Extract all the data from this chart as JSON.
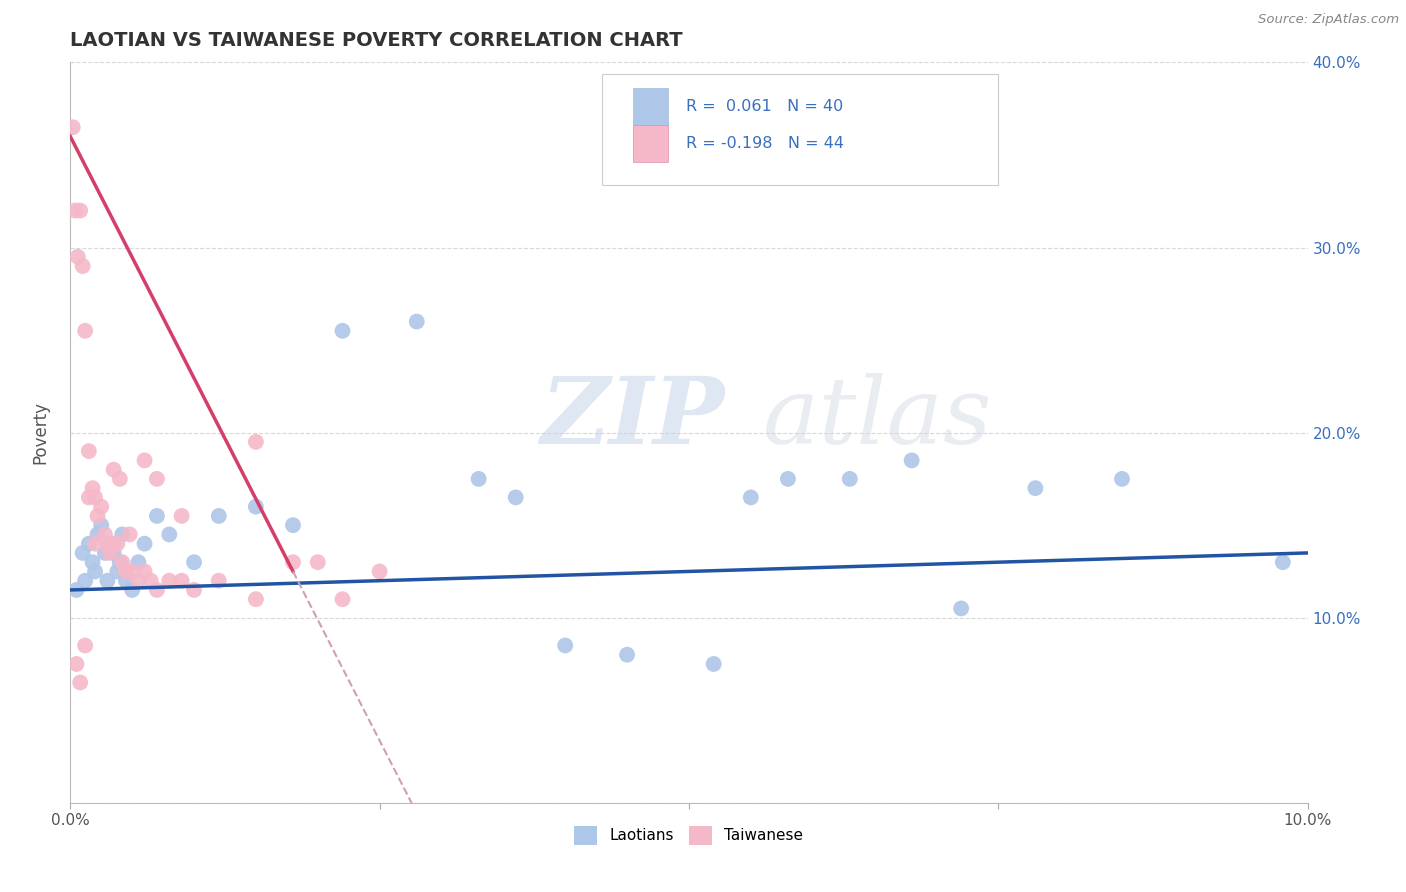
{
  "title": "LAOTIAN VS TAIWANESE POVERTY CORRELATION CHART",
  "source": "Source: ZipAtlas.com",
  "ylabel": "Poverty",
  "xlim": [
    0.0,
    10.0
  ],
  "ylim": [
    0.0,
    40.0
  ],
  "yticks": [
    0,
    10,
    20,
    30,
    40
  ],
  "ytick_labels_right": [
    "",
    "10.0%",
    "20.0%",
    "30.0%",
    "40.0%"
  ],
  "xtick_vals": [
    0.0,
    2.5,
    5.0,
    7.5,
    10.0
  ],
  "xtick_labels": [
    "0.0%",
    "",
    "",
    "",
    "10.0%"
  ],
  "laotian_color": "#aec6e8",
  "taiwanese_color": "#f5b8c8",
  "laotian_line_color": "#2155a3",
  "taiwanese_line_color": "#d43f6a",
  "taiwanese_dashed_color": "#d0a0b0",
  "R_laotian": 0.061,
  "N_laotian": 40,
  "R_taiwanese": -0.198,
  "N_taiwanese": 44,
  "laotian_scatter_x": [
    0.05,
    0.1,
    0.12,
    0.15,
    0.18,
    0.2,
    0.22,
    0.25,
    0.28,
    0.3,
    0.32,
    0.35,
    0.38,
    0.4,
    0.42,
    0.45,
    0.5,
    0.55,
    0.6,
    0.7,
    0.8,
    1.0,
    1.2,
    1.5,
    1.8,
    2.2,
    2.8,
    3.3,
    3.6,
    4.0,
    4.5,
    5.2,
    5.5,
    5.8,
    6.3,
    6.8,
    7.2,
    7.8,
    8.5,
    9.8
  ],
  "laotian_scatter_y": [
    11.5,
    13.5,
    12.0,
    14.0,
    13.0,
    12.5,
    14.5,
    15.0,
    13.5,
    12.0,
    14.0,
    13.5,
    12.5,
    13.0,
    14.5,
    12.0,
    11.5,
    13.0,
    14.0,
    15.5,
    14.5,
    13.0,
    15.5,
    16.0,
    15.0,
    25.5,
    26.0,
    17.5,
    16.5,
    8.5,
    8.0,
    7.5,
    16.5,
    17.5,
    17.5,
    18.5,
    10.5,
    17.0,
    17.5,
    13.0
  ],
  "taiwanese_scatter_x": [
    0.02,
    0.04,
    0.06,
    0.08,
    0.1,
    0.12,
    0.15,
    0.18,
    0.2,
    0.22,
    0.25,
    0.28,
    0.3,
    0.32,
    0.35,
    0.38,
    0.4,
    0.42,
    0.45,
    0.48,
    0.5,
    0.55,
    0.6,
    0.65,
    0.7,
    0.8,
    0.9,
    1.0,
    1.2,
    1.5,
    1.8,
    2.0,
    2.2,
    2.5,
    1.5,
    0.6,
    0.7,
    0.15,
    0.9,
    0.35,
    0.2,
    0.12,
    0.08,
    0.05
  ],
  "taiwanese_scatter_y": [
    36.5,
    32.0,
    29.5,
    32.0,
    29.0,
    25.5,
    19.0,
    17.0,
    16.5,
    15.5,
    16.0,
    14.5,
    14.0,
    13.5,
    14.0,
    14.0,
    17.5,
    13.0,
    12.5,
    14.5,
    12.5,
    12.0,
    12.5,
    12.0,
    11.5,
    12.0,
    12.0,
    11.5,
    12.0,
    11.0,
    13.0,
    13.0,
    11.0,
    12.5,
    19.5,
    18.5,
    17.5,
    16.5,
    15.5,
    18.0,
    14.0,
    8.5,
    6.5,
    7.5
  ],
  "watermark_text1": "ZIP",
  "watermark_text2": "atlas",
  "background_color": "#ffffff",
  "grid_color": "#d8d8d8",
  "figsize": [
    14.06,
    8.92
  ],
  "dpi": 100
}
